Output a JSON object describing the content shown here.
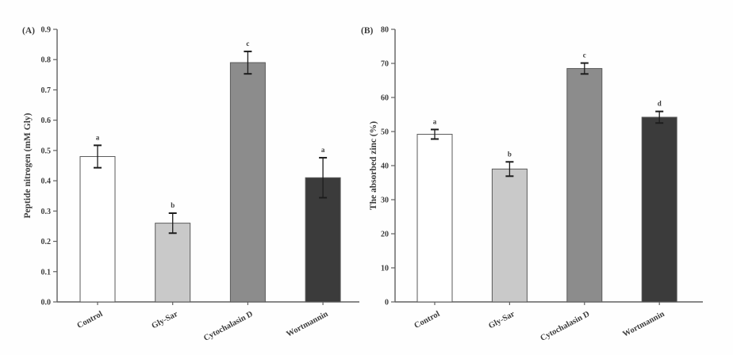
{
  "figure": {
    "background": "#fefefe",
    "description": "Two-panel bar chart figure with error bars and significance letters"
  },
  "chart_data": [
    {
      "type": "bar",
      "panel_label": "(A)",
      "title": "",
      "xlabel": "",
      "ylabel": "Peptide nitrogen (mM Gly)",
      "ylim": [
        0,
        0.9
      ],
      "ytick_step": 0.1,
      "ytick_decimals": 1,
      "grid": false,
      "legend": "none",
      "categories": [
        "Control",
        "Gly-Sar",
        "Cytochalasin D",
        "Wortmannin"
      ],
      "values": [
        0.48,
        0.26,
        0.79,
        0.41
      ],
      "errors": [
        0.037,
        0.033,
        0.037,
        0.066
      ],
      "sig_letters": [
        "a",
        "b",
        "c",
        "a"
      ],
      "bar_fills": [
        "#ffffff",
        "#c9c9c9",
        "#8c8c8c",
        "#3b3b3b"
      ],
      "bar_border": "#5a5a5a",
      "error_color": "#1c1c1c",
      "axis_color": "#606060",
      "text_color": "#3c3c3c"
    },
    {
      "type": "bar",
      "panel_label": "(B)",
      "title": "",
      "xlabel": "",
      "ylabel": "The absorbed zinc (%)",
      "ylim": [
        0,
        80
      ],
      "ytick_step": 10,
      "ytick_decimals": 0,
      "grid": false,
      "legend": "none",
      "categories": [
        "Control",
        "Gly-Sar",
        "Cytochalasin D",
        "Wortmannin"
      ],
      "values": [
        49.2,
        39.0,
        68.5,
        54.2
      ],
      "errors": [
        1.4,
        2.1,
        1.6,
        1.7
      ],
      "sig_letters": [
        "a",
        "b",
        "c",
        "d"
      ],
      "bar_fills": [
        "#ffffff",
        "#c9c9c9",
        "#8c8c8c",
        "#3b3b3b"
      ],
      "bar_border": "#5a5a5a",
      "error_color": "#1c1c1c",
      "axis_color": "#606060",
      "text_color": "#3c3c3c"
    }
  ]
}
